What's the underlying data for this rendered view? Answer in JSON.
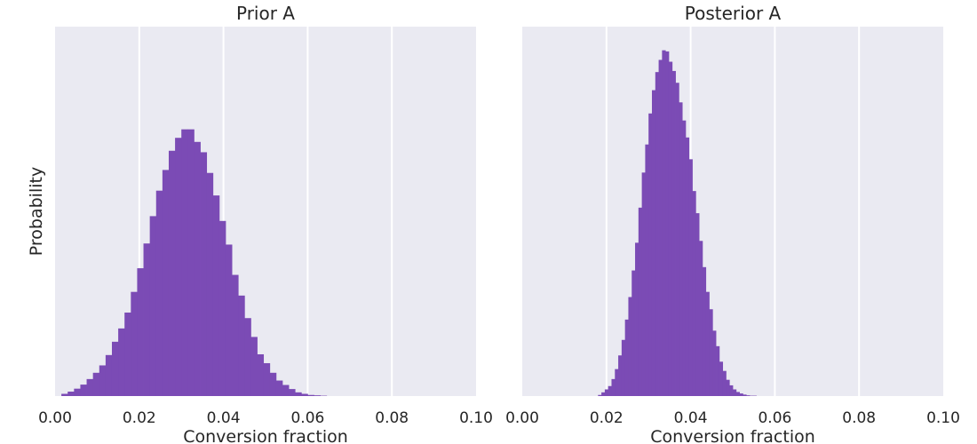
{
  "colors": {
    "bar": "#7b4bb5",
    "panel_background": "#eaeaf2",
    "grid": "#ffffff"
  },
  "chart_data": [
    {
      "type": "bar",
      "title": "Prior A",
      "xlabel": "Conversion fraction",
      "ylabel": "Probability",
      "xlim": [
        0.0,
        0.1
      ],
      "xticks": [
        "0.00",
        "0.02",
        "0.04",
        "0.06",
        "0.08",
        "0.10"
      ],
      "y_ticks_shown": false,
      "grid": "vertical",
      "bin_width": 0.0015,
      "x_start": 0.0,
      "values": [
        0.0,
        0.006,
        0.012,
        0.02,
        0.031,
        0.046,
        0.063,
        0.083,
        0.111,
        0.147,
        0.183,
        0.226,
        0.282,
        0.346,
        0.413,
        0.487,
        0.556,
        0.612,
        0.664,
        0.699,
        0.722,
        0.722,
        0.688,
        0.66,
        0.604,
        0.543,
        0.474,
        0.41,
        0.328,
        0.272,
        0.211,
        0.16,
        0.113,
        0.089,
        0.063,
        0.042,
        0.03,
        0.019,
        0.01,
        0.006,
        0.003,
        0.002,
        0.001,
        0.0,
        0.0,
        0.0,
        0.0,
        0.0,
        0.0,
        0.0,
        0.0,
        0.0,
        0.0,
        0.0,
        0.0,
        0.0,
        0.0,
        0.0,
        0.0,
        0.0,
        0.0,
        0.0,
        0.0,
        0.0,
        0.0,
        0.0
      ]
    },
    {
      "type": "bar",
      "title": "Posterior A",
      "xlabel": "Conversion fraction",
      "ylabel": "",
      "xlim": [
        0.0,
        0.1
      ],
      "xticks": [
        "0.00",
        "0.02",
        "0.04",
        "0.06",
        "0.08",
        "0.10"
      ],
      "y_ticks_shown": false,
      "grid": "vertical",
      "bin_width": 0.0008,
      "x_start": 0.018,
      "values": [
        0.003,
        0.01,
        0.018,
        0.027,
        0.046,
        0.073,
        0.11,
        0.152,
        0.207,
        0.268,
        0.34,
        0.415,
        0.51,
        0.605,
        0.681,
        0.765,
        0.828,
        0.877,
        0.91,
        0.936,
        0.933,
        0.905,
        0.88,
        0.848,
        0.795,
        0.746,
        0.7,
        0.641,
        0.555,
        0.495,
        0.42,
        0.349,
        0.282,
        0.235,
        0.177,
        0.135,
        0.093,
        0.068,
        0.044,
        0.029,
        0.018,
        0.011,
        0.007,
        0.004,
        0.002,
        0.001,
        0.001
      ]
    }
  ]
}
